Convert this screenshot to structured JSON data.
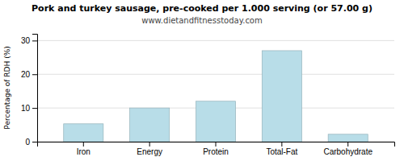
{
  "chart_data": {
    "type": "bar",
    "title": "Pork and turkey sausage, pre-cooked per 1.000 serving (or 57.00 g)",
    "subtitle": "www.dietandfitnesstoday.com",
    "ylabel": "Percentage of RDH (%)",
    "categories": [
      "Iron",
      "Energy",
      "Protein",
      "Total-Fat",
      "Carbohydrate"
    ],
    "values": [
      5.3,
      10.0,
      12.0,
      27.0,
      2.2
    ],
    "color": "#b8dde8",
    "ylim": [
      0,
      32
    ],
    "yticks": [
      0,
      10,
      20,
      30
    ],
    "grid": true
  }
}
